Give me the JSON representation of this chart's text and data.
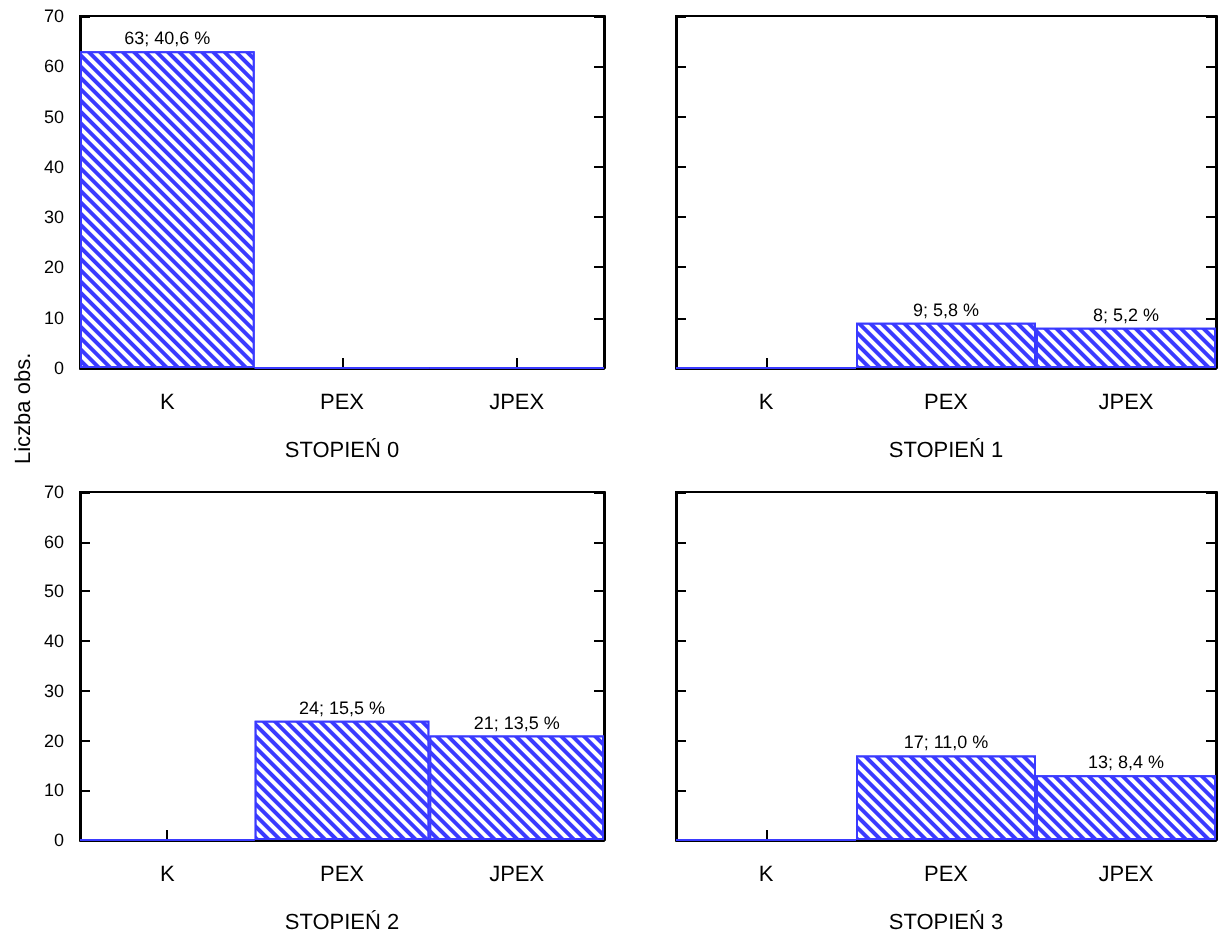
{
  "chart_data": [
    {
      "type": "bar",
      "xlabel": "STOPIEŃ 0",
      "ylabel": "Liczba obs.",
      "categories": [
        "K",
        "PEX",
        "JPEX"
      ],
      "values": [
        63,
        0,
        0
      ],
      "value_labels": [
        "63; 40,6 %",
        null,
        null
      ],
      "color": "#3a3aff",
      "ylim": [
        0,
        70
      ],
      "yticks": [
        0,
        10,
        20,
        30,
        40,
        50,
        60,
        70
      ],
      "grid": false
    },
    {
      "type": "bar",
      "xlabel": "STOPIEŃ 1",
      "categories": [
        "K",
        "PEX",
        "JPEX"
      ],
      "values": [
        0,
        9,
        8
      ],
      "value_labels": [
        null,
        "9; 5,8 %",
        "8; 5,2 %"
      ],
      "color": "#3a3aff",
      "ylim": [
        0,
        70
      ],
      "yticks": [
        0,
        10,
        20,
        30,
        40,
        50,
        60,
        70
      ],
      "tick_labels": "x",
      "grid": false
    },
    {
      "type": "bar",
      "xlabel": "STOPIEŃ 2",
      "categories": [
        "K",
        "PEX",
        "JPEX"
      ],
      "values": [
        0,
        24,
        21
      ],
      "value_labels": [
        null,
        "24; 15,5 %",
        "21; 13,5 %"
      ],
      "color": "#3a3aff",
      "ylim": [
        0,
        70
      ],
      "yticks": [
        0,
        10,
        20,
        30,
        40,
        50,
        60,
        70
      ],
      "grid": false
    },
    {
      "type": "bar",
      "xlabel": "STOPIEŃ 3",
      "categories": [
        "K",
        "PEX",
        "JPEX"
      ],
      "values": [
        0,
        17,
        13
      ],
      "value_labels": [
        null,
        "17; 11,0 %",
        "13; 8,4 %"
      ],
      "color": "#3a3aff",
      "ylim": [
        0,
        70
      ],
      "yticks": [
        0,
        10,
        20,
        30,
        40,
        50,
        60,
        70
      ],
      "tick_labels": "x",
      "grid": false
    }
  ]
}
